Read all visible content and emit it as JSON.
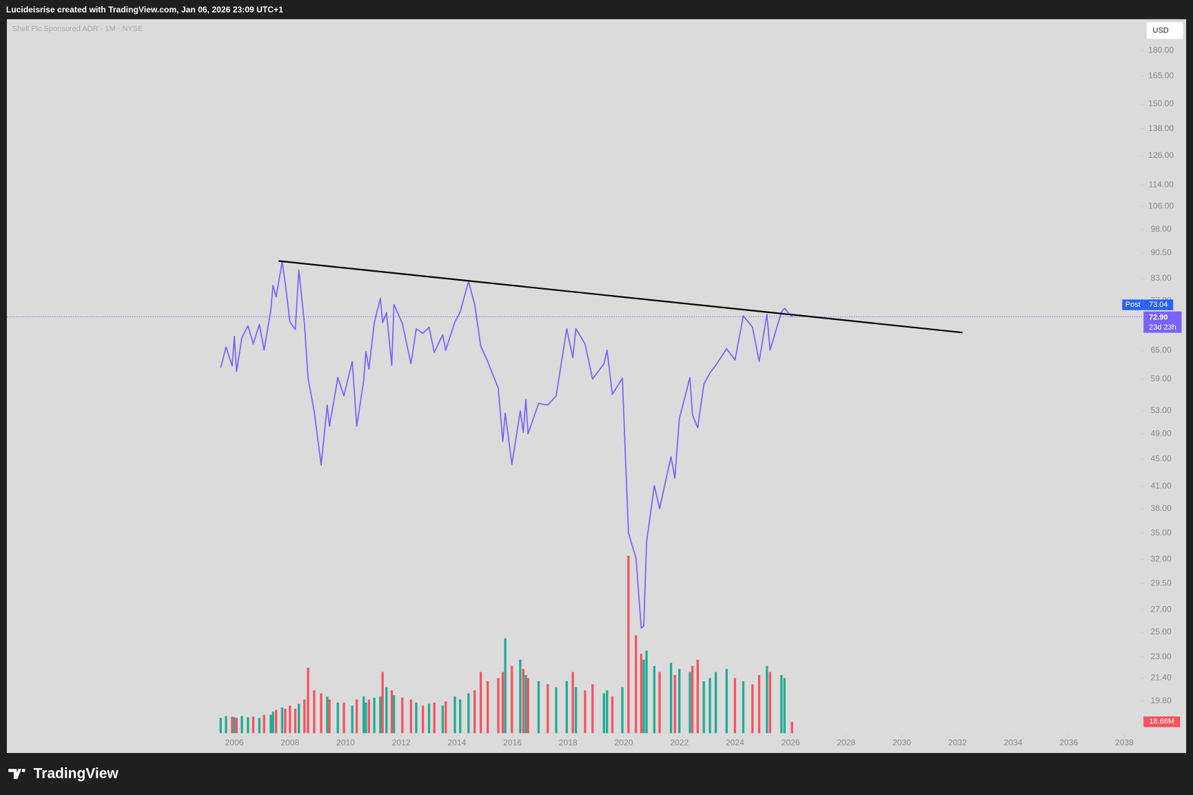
{
  "header": "Lucideisrise created with TradingView.com, Jan 06, 2026 23:09 UTC+1",
  "chart_data": {
    "type": "line",
    "title": "Shell Plc Sponsored ADR · 1M · NYSE",
    "currency": "USD",
    "log_scale": true,
    "color": "#7b61ff",
    "x": [
      2005.51,
      2005.7,
      2005.92,
      2006.0,
      2006.08,
      2006.27,
      2006.49,
      2006.68,
      2006.9,
      2007.07,
      2007.31,
      2007.39,
      2007.5,
      2007.72,
      2007.83,
      2008.0,
      2008.19,
      2008.32,
      2008.52,
      2008.65,
      2008.87,
      2009.12,
      2009.34,
      2009.42,
      2009.72,
      2009.94,
      2010.24,
      2010.4,
      2010.65,
      2010.73,
      2010.84,
      2011.03,
      2011.25,
      2011.33,
      2011.47,
      2011.66,
      2011.74,
      2012.04,
      2012.35,
      2012.54,
      2012.78,
      2013.0,
      2013.19,
      2013.49,
      2013.6,
      2013.93,
      2014.12,
      2014.42,
      2014.64,
      2014.86,
      2015.11,
      2015.49,
      2015.65,
      2015.74,
      2015.98,
      2016.28,
      2016.39,
      2016.48,
      2016.56,
      2016.94,
      2017.27,
      2017.57,
      2017.95,
      2018.17,
      2018.28,
      2018.61,
      2018.88,
      2019.29,
      2019.4,
      2019.59,
      2019.95,
      2020.17,
      2020.44,
      2020.63,
      2020.72,
      2020.82,
      2021.1,
      2021.29,
      2021.7,
      2021.84,
      2022.0,
      2022.38,
      2022.47,
      2022.66,
      2022.88,
      2023.1,
      2023.31,
      2023.7,
      2024.0,
      2024.3,
      2024.63,
      2024.87,
      2025.15,
      2025.26,
      2025.67,
      2025.78,
      2026.05
    ],
    "values": [
      61.35,
      65.79,
      61.68,
      68.22,
      60.57,
      67.86,
      70.73,
      66.48,
      71.1,
      65.11,
      74.48,
      81.11,
      78.03,
      87.88,
      81.75,
      71.65,
      69.82,
      85.41,
      71.28,
      59.18,
      52.96,
      44.08,
      54.06,
      50.29,
      59.33,
      55.76,
      62.64,
      50.29,
      58.72,
      64.78,
      61.04,
      71.46,
      77.63,
      71.46,
      73.9,
      61.84,
      76.03,
      71.28,
      62.16,
      70.01,
      68.93,
      70.36,
      64.62,
      68.57,
      65.11,
      71.65,
      74.1,
      82.17,
      76.03,
      65.96,
      62.64,
      57.22,
      47.75,
      52.55,
      44.19,
      52.96,
      49.26,
      55.05,
      49,
      54.34,
      54.06,
      55.76,
      70.01,
      63.45,
      70.01,
      66.48,
      59.03,
      62.16,
      65.11,
      56.05,
      59.18,
      35.02,
      32.16,
      25.36,
      25.55,
      33.95,
      41.11,
      38.04,
      45.35,
      42.18,
      51.61,
      59.33,
      52.28,
      50.03,
      57.97,
      60.26,
      61.84,
      65.45,
      62.96,
      73.15,
      70.36,
      62.64,
      73.53,
      65.11,
      74.1,
      75.06,
      72.9
    ],
    "xlim": [
      1997.82,
      2038.69
    ],
    "xticks": [
      2006,
      2008,
      2010,
      2012,
      2014,
      2016,
      2018,
      2020,
      2022,
      2024,
      2026,
      2028,
      2030,
      2032,
      2034,
      2036,
      2038
    ],
    "ylim": [
      17.66,
      200.1
    ],
    "yticks": [
      {
        "value": 180,
        "label": "180.00"
      },
      {
        "value": 165,
        "label": "165.00"
      },
      {
        "value": 150,
        "label": "150.00"
      },
      {
        "value": 138,
        "label": "138.00"
      },
      {
        "value": 126,
        "label": "126.00"
      },
      {
        "value": 114,
        "label": "114.00"
      },
      {
        "value": 106,
        "label": "106.00"
      },
      {
        "value": 98,
        "label": "98.00"
      },
      {
        "value": 90.5,
        "label": "90.50"
      },
      {
        "value": 83,
        "label": "83.00"
      },
      {
        "value": 77,
        "label": "77.00"
      },
      {
        "value": 65,
        "label": "65.00"
      },
      {
        "value": 59,
        "label": "59.00"
      },
      {
        "value": 53,
        "label": "53.00"
      },
      {
        "value": 49,
        "label": "49.00"
      },
      {
        "value": 45,
        "label": "45.00"
      },
      {
        "value": 41,
        "label": "41.00"
      },
      {
        "value": 38,
        "label": "38.00"
      },
      {
        "value": 35,
        "label": "35.00"
      },
      {
        "value": 32,
        "label": "32.00"
      },
      {
        "value": 29.5,
        "label": "29.50"
      },
      {
        "value": 27,
        "label": "27.00"
      },
      {
        "value": 25,
        "label": "25.00"
      },
      {
        "value": 23,
        "label": "23.00"
      },
      {
        "value": 21.4,
        "label": "21.40"
      },
      {
        "value": 19.8,
        "label": "19.80"
      }
    ],
    "trendline": {
      "x": [
        2007.59,
        2032.18
      ],
      "values": [
        88.1,
        69.11
      ],
      "color": "#000000"
    },
    "last_price": {
      "value": 72.9,
      "label": "72.90",
      "countdown": "23d 23h"
    },
    "post_market": {
      "tag": "Post",
      "value": 73.04,
      "label": "73.04"
    },
    "volume": {
      "values": [
        25,
        28,
        27,
        26,
        25,
        28,
        26,
        27,
        25,
        30,
        30,
        35,
        38,
        42,
        40,
        45,
        40,
        48,
        55,
        107,
        70,
        65,
        60,
        55,
        50,
        50,
        45,
        55,
        60,
        50,
        55,
        58,
        60,
        100,
        75,
        70,
        62,
        58,
        55,
        50,
        45,
        48,
        50,
        45,
        52,
        60,
        55,
        65,
        70,
        100,
        85,
        90,
        100,
        155,
        110,
        120,
        105,
        95,
        90,
        85,
        80,
        75,
        85,
        100,
        75,
        70,
        80,
        65,
        70,
        60,
        75,
        290,
        160,
        130,
        120,
        135,
        110,
        100,
        115,
        95,
        105,
        100,
        110,
        120,
        85,
        90,
        100,
        105,
        90,
        85,
        80,
        95,
        110,
        100,
        95,
        90,
        18.66
      ],
      "up_color": "#22ab94",
      "down_color": "#f7525f",
      "last_label": "18.66M"
    }
  },
  "footer": {
    "brand": "TradingView"
  }
}
